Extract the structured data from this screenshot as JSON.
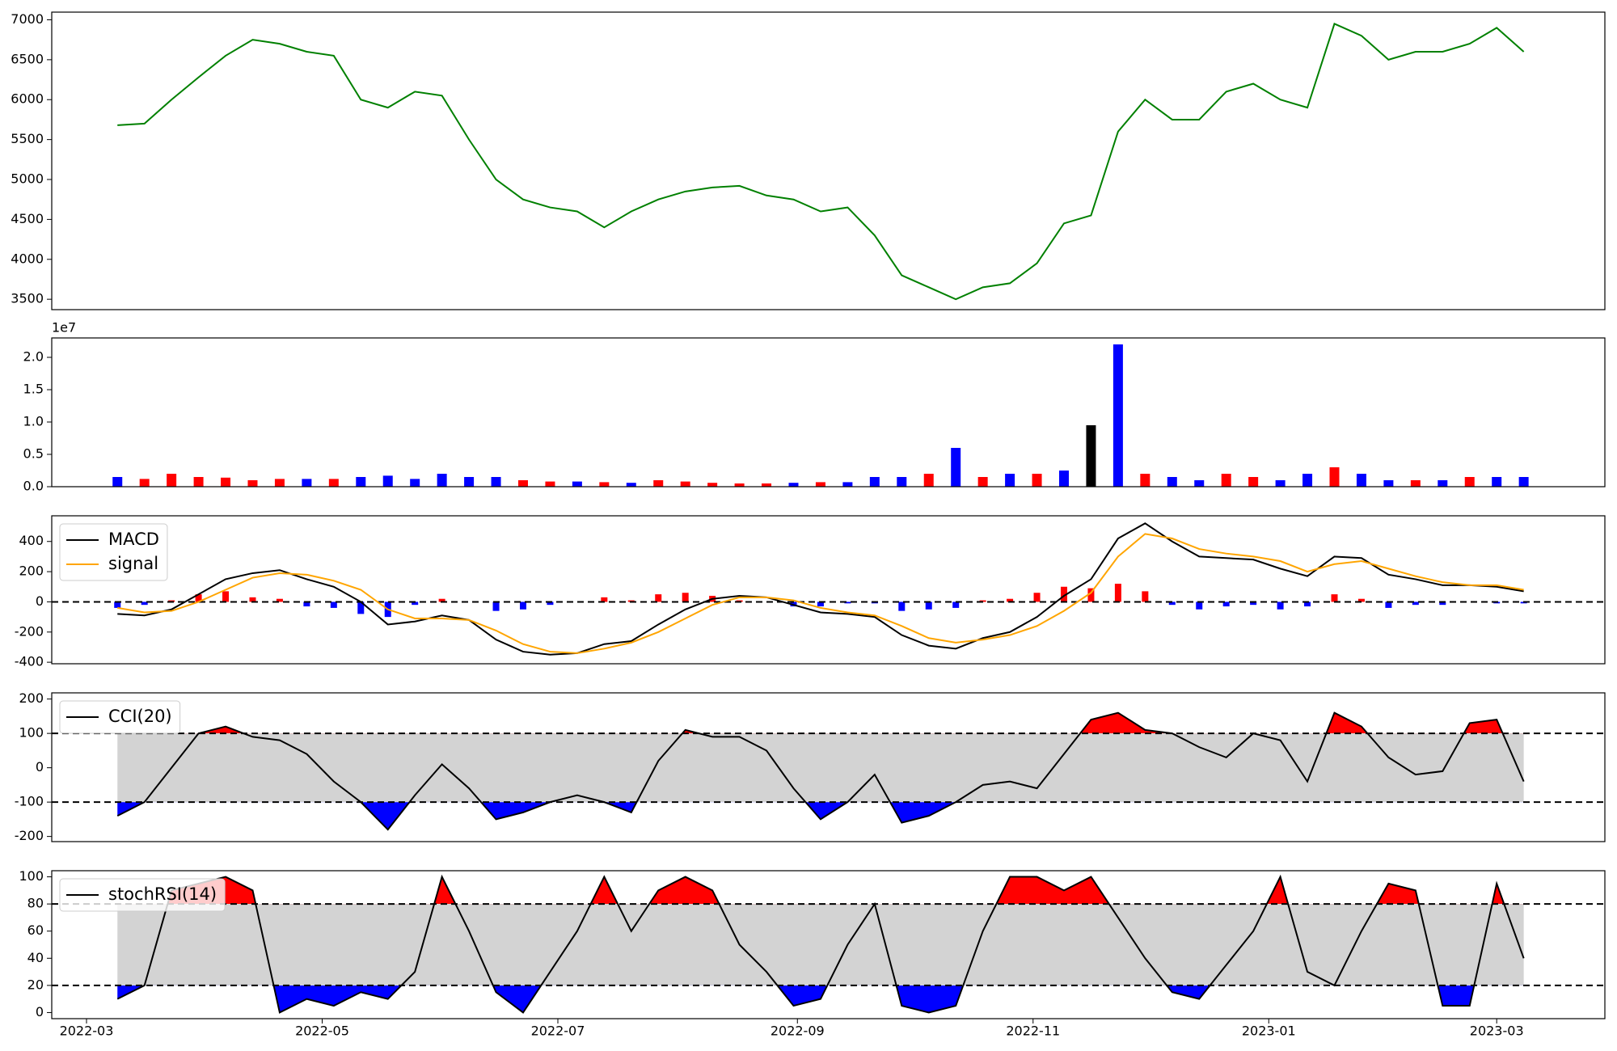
{
  "chart_data": [
    {
      "type": "line",
      "x": [
        "2022-03-09",
        "2022-03-16",
        "2022-03-23",
        "2022-03-30",
        "2022-04-06",
        "2022-04-13",
        "2022-04-20",
        "2022-04-27",
        "2022-05-04",
        "2022-05-11",
        "2022-05-18",
        "2022-05-25",
        "2022-06-01",
        "2022-06-08",
        "2022-06-15",
        "2022-06-22",
        "2022-06-29",
        "2022-07-06",
        "2022-07-13",
        "2022-07-20",
        "2022-07-27",
        "2022-08-03",
        "2022-08-10",
        "2022-08-17",
        "2022-08-24",
        "2022-08-31",
        "2022-09-07",
        "2022-09-14",
        "2022-09-21",
        "2022-09-28",
        "2022-10-05",
        "2022-10-12",
        "2022-10-19",
        "2022-10-26",
        "2022-11-02",
        "2022-11-09",
        "2022-11-16",
        "2022-11-23",
        "2022-11-30",
        "2022-12-07",
        "2022-12-14",
        "2022-12-21",
        "2022-12-28",
        "2023-01-04",
        "2023-01-11",
        "2023-01-18",
        "2023-01-25",
        "2023-02-01",
        "2023-02-08",
        "2023-02-15",
        "2023-02-22",
        "2023-03-01",
        "2023-03-08"
      ],
      "xlim": [
        "2022-02-20",
        "2023-03-29"
      ],
      "ylim": [
        3370,
        7096
      ],
      "yticks": [
        3500,
        4000,
        4500,
        5000,
        5500,
        6000,
        6500,
        7000
      ],
      "series": [
        {
          "color": "green",
          "values": [
            5680,
            5700,
            6000,
            6280,
            6550,
            6750,
            6700,
            6600,
            6550,
            6000,
            5900,
            6100,
            6050,
            5500,
            5000,
            4750,
            4650,
            4600,
            4400,
            4600,
            4750,
            4850,
            4900,
            4920,
            4800,
            4750,
            4600,
            4650,
            4300,
            3800,
            3650,
            3500,
            3650,
            3700,
            3950,
            4450,
            4550,
            5600,
            6000,
            5750,
            5750,
            6100,
            6200,
            6000,
            5900,
            6950,
            6800,
            6500,
            6600,
            6600,
            6700,
            6900,
            6600
          ]
        }
      ]
    },
    {
      "type": "bar",
      "x": [
        "2022-03-09",
        "2022-03-16",
        "2022-03-23",
        "2022-03-30",
        "2022-04-06",
        "2022-04-13",
        "2022-04-20",
        "2022-04-27",
        "2022-05-04",
        "2022-05-11",
        "2022-05-18",
        "2022-05-25",
        "2022-06-01",
        "2022-06-08",
        "2022-06-15",
        "2022-06-22",
        "2022-06-29",
        "2022-07-06",
        "2022-07-13",
        "2022-07-20",
        "2022-07-27",
        "2022-08-03",
        "2022-08-10",
        "2022-08-17",
        "2022-08-24",
        "2022-08-31",
        "2022-09-07",
        "2022-09-14",
        "2022-09-21",
        "2022-09-28",
        "2022-10-05",
        "2022-10-12",
        "2022-10-19",
        "2022-10-26",
        "2022-11-02",
        "2022-11-09",
        "2022-11-16",
        "2022-11-23",
        "2022-11-30",
        "2022-12-07",
        "2022-12-14",
        "2022-12-21",
        "2022-12-28",
        "2023-01-04",
        "2023-01-11",
        "2023-01-18",
        "2023-01-25",
        "2023-02-01",
        "2023-02-08",
        "2023-02-15",
        "2023-02-22",
        "2023-03-01",
        "2023-03-08"
      ],
      "xlim": [
        "2022-02-20",
        "2023-03-29"
      ],
      "ylim": [
        0,
        2.3
      ],
      "yticks": [
        {
          "value": 0,
          "label": "0.0"
        },
        0.5,
        {
          "value": 1,
          "label": "1.0"
        },
        1.5,
        {
          "value": 2,
          "label": "2.0"
        }
      ],
      "y_offset_label": "1e7",
      "values": [
        0.15,
        0.12,
        0.2,
        0.15,
        0.14,
        0.1,
        0.12,
        0.12,
        0.12,
        0.15,
        0.17,
        0.12,
        0.2,
        0.15,
        0.15,
        0.1,
        0.08,
        0.08,
        0.07,
        0.06,
        0.1,
        0.08,
        0.06,
        0.05,
        0.05,
        0.06,
        0.07,
        0.07,
        0.15,
        0.15,
        0.2,
        0.6,
        0.15,
        0.2,
        0.2,
        0.25,
        0.95,
        2.2,
        0.2,
        0.15,
        0.1,
        0.2,
        0.15,
        0.1,
        0.2,
        0.3,
        0.2,
        0.1,
        0.1,
        0.1,
        0.15,
        0.15,
        0.15
      ],
      "colors": [
        "blue",
        "red",
        "red",
        "red",
        "red",
        "red",
        "red",
        "blue",
        "red",
        "blue",
        "blue",
        "blue",
        "blue",
        "blue",
        "blue",
        "red",
        "red",
        "blue",
        "red",
        "blue",
        "red",
        "red",
        "red",
        "red",
        "red",
        "blue",
        "red",
        "blue",
        "blue",
        "blue",
        "red",
        "blue",
        "red",
        "blue",
        "red",
        "blue",
        "black",
        "blue",
        "red",
        "blue",
        "blue",
        "red",
        "red",
        "blue",
        "blue",
        "red",
        "blue",
        "blue",
        "red",
        "blue",
        "red",
        "blue",
        "blue"
      ]
    },
    {
      "type": "line",
      "x": [
        "2022-03-09",
        "2022-03-16",
        "2022-03-23",
        "2022-03-30",
        "2022-04-06",
        "2022-04-13",
        "2022-04-20",
        "2022-04-27",
        "2022-05-04",
        "2022-05-11",
        "2022-05-18",
        "2022-05-25",
        "2022-06-01",
        "2022-06-08",
        "2022-06-15",
        "2022-06-22",
        "2022-06-29",
        "2022-07-06",
        "2022-07-13",
        "2022-07-20",
        "2022-07-27",
        "2022-08-03",
        "2022-08-10",
        "2022-08-17",
        "2022-08-24",
        "2022-08-31",
        "2022-09-07",
        "2022-09-14",
        "2022-09-21",
        "2022-09-28",
        "2022-10-05",
        "2022-10-12",
        "2022-10-19",
        "2022-10-26",
        "2022-11-02",
        "2022-11-09",
        "2022-11-16",
        "2022-11-23",
        "2022-11-30",
        "2022-12-07",
        "2022-12-14",
        "2022-12-21",
        "2022-12-28",
        "2023-01-04",
        "2023-01-11",
        "2023-01-18",
        "2023-01-25",
        "2023-02-01",
        "2023-02-08",
        "2023-02-15",
        "2023-02-22",
        "2023-03-01",
        "2023-03-08"
      ],
      "xlim": [
        "2022-02-20",
        "2023-03-29"
      ],
      "ylim": [
        -410,
        570
      ],
      "yticks": [
        -400,
        -200,
        0,
        200,
        400
      ],
      "hlines": [
        0
      ],
      "legend": "upper left",
      "bars": {
        "up_color": "red",
        "down_color": "blue",
        "values": [
          -40,
          -20,
          10,
          50,
          70,
          30,
          20,
          -30,
          -40,
          -80,
          -100,
          -20,
          20,
          0,
          -60,
          -50,
          -20,
          0,
          30,
          10,
          50,
          60,
          40,
          10,
          0,
          -30,
          -30,
          -10,
          -10,
          -60,
          -50,
          -40,
          10,
          20,
          60,
          100,
          90,
          120,
          70,
          -20,
          -50,
          -30,
          -20,
          -50,
          -30,
          50,
          20,
          -40,
          -20,
          -20,
          0,
          -10,
          -10
        ]
      },
      "series": [
        {
          "name": "MACD",
          "color": "black",
          "values": [
            -80,
            -90,
            -50,
            50,
            150,
            190,
            210,
            150,
            100,
            0,
            -150,
            -130,
            -90,
            -120,
            -250,
            -330,
            -350,
            -340,
            -280,
            -260,
            -150,
            -50,
            20,
            40,
            30,
            -20,
            -70,
            -80,
            -100,
            -220,
            -290,
            -310,
            -240,
            -200,
            -100,
            40,
            150,
            420,
            520,
            400,
            300,
            290,
            280,
            220,
            170,
            300,
            290,
            180,
            150,
            110,
            110,
            100,
            70
          ]
        },
        {
          "name": "signal",
          "color": "orange",
          "values": [
            -40,
            -70,
            -60,
            0,
            80,
            160,
            190,
            180,
            140,
            80,
            -50,
            -110,
            -110,
            -120,
            -190,
            -280,
            -330,
            -340,
            -310,
            -270,
            -200,
            -110,
            -20,
            30,
            30,
            10,
            -40,
            -70,
            -90,
            -160,
            -240,
            -270,
            -250,
            -220,
            -160,
            -60,
            60,
            300,
            450,
            420,
            350,
            320,
            300,
            270,
            200,
            250,
            270,
            220,
            170,
            130,
            110,
            110,
            80
          ]
        }
      ]
    },
    {
      "type": "line",
      "x": [
        "2022-03-09",
        "2022-03-16",
        "2022-03-23",
        "2022-03-30",
        "2022-04-06",
        "2022-04-13",
        "2022-04-20",
        "2022-04-27",
        "2022-05-04",
        "2022-05-11",
        "2022-05-18",
        "2022-05-25",
        "2022-06-01",
        "2022-06-08",
        "2022-06-15",
        "2022-06-22",
        "2022-06-29",
        "2022-07-06",
        "2022-07-13",
        "2022-07-20",
        "2022-07-27",
        "2022-08-03",
        "2022-08-10",
        "2022-08-17",
        "2022-08-24",
        "2022-08-31",
        "2022-09-07",
        "2022-09-14",
        "2022-09-21",
        "2022-09-28",
        "2022-10-05",
        "2022-10-12",
        "2022-10-19",
        "2022-10-26",
        "2022-11-02",
        "2022-11-09",
        "2022-11-16",
        "2022-11-23",
        "2022-11-30",
        "2022-12-07",
        "2022-12-14",
        "2022-12-21",
        "2022-12-28",
        "2023-01-04",
        "2023-01-11",
        "2023-01-18",
        "2023-01-25",
        "2023-02-01",
        "2023-02-08",
        "2023-02-15",
        "2023-02-22",
        "2023-03-01",
        "2023-03-08"
      ],
      "xlim": [
        "2022-02-20",
        "2023-03-29"
      ],
      "ylim": [
        -215,
        218
      ],
      "yticks": [
        -200,
        -100,
        0,
        100,
        200
      ],
      "hlines": [
        100,
        -100
      ],
      "band_color": "lightgray",
      "fill_above_color": "red",
      "fill_below_color": "blue",
      "legend": "upper left",
      "series": [
        {
          "name": "CCI(20)",
          "color": "black",
          "values": [
            -140,
            -100,
            0,
            100,
            120,
            90,
            80,
            40,
            -40,
            -100,
            -180,
            -80,
            10,
            -60,
            -150,
            -130,
            -100,
            -80,
            -100,
            -130,
            20,
            110,
            90,
            90,
            50,
            -60,
            -150,
            -100,
            -20,
            -160,
            -140,
            -100,
            -50,
            -40,
            -60,
            40,
            140,
            160,
            110,
            100,
            60,
            30,
            100,
            80,
            -40,
            160,
            120,
            30,
            -20,
            -10,
            130,
            140,
            -40
          ]
        }
      ]
    },
    {
      "type": "line",
      "x": [
        "2022-03-09",
        "2022-03-16",
        "2022-03-23",
        "2022-03-30",
        "2022-04-06",
        "2022-04-13",
        "2022-04-20",
        "2022-04-27",
        "2022-05-04",
        "2022-05-11",
        "2022-05-18",
        "2022-05-25",
        "2022-06-01",
        "2022-06-08",
        "2022-06-15",
        "2022-06-22",
        "2022-06-29",
        "2022-07-06",
        "2022-07-13",
        "2022-07-20",
        "2022-07-27",
        "2022-08-03",
        "2022-08-10",
        "2022-08-17",
        "2022-08-24",
        "2022-08-31",
        "2022-09-07",
        "2022-09-14",
        "2022-09-21",
        "2022-09-28",
        "2022-10-05",
        "2022-10-12",
        "2022-10-19",
        "2022-10-26",
        "2022-11-02",
        "2022-11-09",
        "2022-11-16",
        "2022-11-23",
        "2022-11-30",
        "2022-12-07",
        "2022-12-14",
        "2022-12-21",
        "2022-12-28",
        "2023-01-04",
        "2023-01-11",
        "2023-01-18",
        "2023-01-25",
        "2023-02-01",
        "2023-02-08",
        "2023-02-15",
        "2023-02-22",
        "2023-03-01",
        "2023-03-08"
      ],
      "xlim": [
        "2022-02-20",
        "2023-03-29"
      ],
      "xticks": [
        "2022-03",
        "2022-05",
        "2022-07",
        "2022-09",
        "2022-11",
        "2023-01",
        "2023-03"
      ],
      "ylim": [
        -4.5,
        104.5
      ],
      "yticks": [
        0,
        20,
        40,
        60,
        80,
        100
      ],
      "hlines": [
        80,
        20
      ],
      "band_color": "lightgray",
      "fill_above_color": "red",
      "fill_below_color": "blue",
      "legend": "upper left",
      "series": [
        {
          "name": "stochRSI(14)",
          "color": "black",
          "values": [
            10,
            20,
            90,
            95,
            100,
            90,
            0,
            10,
            5,
            15,
            10,
            30,
            100,
            60,
            15,
            0,
            30,
            60,
            100,
            60,
            90,
            100,
            90,
            50,
            30,
            5,
            10,
            50,
            80,
            5,
            0,
            5,
            60,
            100,
            100,
            90,
            100,
            70,
            40,
            15,
            10,
            35,
            60,
            100,
            30,
            20,
            60,
            95,
            90,
            5,
            5,
            95,
            40
          ]
        }
      ]
    }
  ]
}
